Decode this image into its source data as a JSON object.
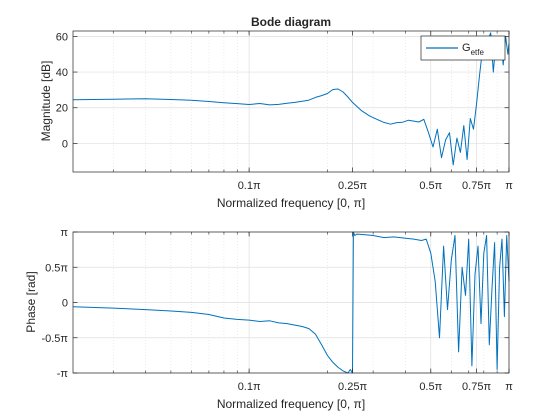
{
  "figure": {
    "background": "#ffffff",
    "axis_color": "#262626",
    "grid_color": "#dfdfdf",
    "line_color": "#0072bd"
  },
  "chart_data": [
    {
      "type": "line",
      "title": "Bode diagram",
      "xlabel": "Normalized frequency [0, π]",
      "ylabel": "Magnitude [dB]",
      "x_scale": "log",
      "x_unit": "fraction of π",
      "xlim": [
        0.021,
        1.0
      ],
      "ylim": [
        -16,
        63
      ],
      "grid": true,
      "legend": {
        "position": "top-right",
        "entries": [
          {
            "label": "G",
            "subscript": "etfe"
          }
        ]
      },
      "x_ticks": [
        {
          "value": 0.1,
          "label": "0.1π"
        },
        {
          "value": 0.25,
          "label": "0.25π"
        },
        {
          "value": 0.5,
          "label": "0.5π"
        },
        {
          "value": 0.75,
          "label": "0.75π"
        },
        {
          "value": 1.0,
          "label": "π"
        }
      ],
      "y_ticks": [
        {
          "value": 0,
          "label": "0"
        },
        {
          "value": 20,
          "label": "20"
        },
        {
          "value": 40,
          "label": "40"
        },
        {
          "value": 60,
          "label": "60"
        }
      ],
      "series": [
        {
          "name": "G_etfe",
          "x": [
            0.021,
            0.03,
            0.04,
            0.05,
            0.06,
            0.07,
            0.08,
            0.09,
            0.1,
            0.11,
            0.12,
            0.13,
            0.14,
            0.15,
            0.16,
            0.17,
            0.18,
            0.19,
            0.2,
            0.21,
            0.22,
            0.23,
            0.24,
            0.25,
            0.27,
            0.29,
            0.31,
            0.33,
            0.35,
            0.37,
            0.39,
            0.41,
            0.43,
            0.45,
            0.47,
            0.49,
            0.51,
            0.53,
            0.55,
            0.57,
            0.59,
            0.61,
            0.63,
            0.65,
            0.67,
            0.69,
            0.71,
            0.73,
            0.75,
            0.77,
            0.79,
            0.81,
            0.83,
            0.85,
            0.87,
            0.89,
            0.91,
            0.93,
            0.95,
            0.97,
            0.99,
            1.0
          ],
          "y": [
            24.5,
            24.8,
            25.0,
            24.6,
            24.2,
            23.5,
            22.8,
            22.3,
            21.8,
            22.4,
            21.6,
            21.9,
            22.5,
            23.0,
            23.6,
            24.3,
            25.8,
            26.8,
            28.0,
            30.2,
            30.5,
            28.8,
            26.0,
            23.0,
            18.5,
            15.5,
            13.5,
            11.8,
            10.8,
            11.7,
            11.9,
            13.0,
            12.5,
            12.0,
            13.5,
            6.0,
            -2.0,
            8.0,
            -8.0,
            2.0,
            6.0,
            -12.0,
            3.0,
            -5.0,
            10.0,
            -9.0,
            14.0,
            8.0,
            22.0,
            38.0,
            52.0,
            48.0,
            58.0,
            62.0,
            40.0,
            56.0,
            48.0,
            59.0,
            44.0,
            60.0,
            50.0,
            56.0
          ]
        }
      ]
    },
    {
      "type": "line",
      "title": "",
      "xlabel": "Normalized frequency [0, π]",
      "ylabel": "Phase [rad]",
      "x_scale": "log",
      "x_unit": "fraction of π",
      "y_unit": "fraction of π",
      "xlim": [
        0.021,
        1.0
      ],
      "ylim": [
        -1.0,
        1.0
      ],
      "grid": true,
      "x_ticks": [
        {
          "value": 0.1,
          "label": "0.1π"
        },
        {
          "value": 0.25,
          "label": "0.25π"
        },
        {
          "value": 0.5,
          "label": "0.5π"
        },
        {
          "value": 0.75,
          "label": "0.75π"
        },
        {
          "value": 1.0,
          "label": "π"
        }
      ],
      "y_ticks": [
        {
          "value": -1.0,
          "label": "-π"
        },
        {
          "value": -0.5,
          "label": "-0.5π"
        },
        {
          "value": 0,
          "label": "0"
        },
        {
          "value": 0.5,
          "label": "0.5π"
        },
        {
          "value": 1.0,
          "label": "π"
        }
      ],
      "series": [
        {
          "name": "G_etfe",
          "x": [
            0.021,
            0.03,
            0.04,
            0.05,
            0.06,
            0.07,
            0.08,
            0.09,
            0.1,
            0.11,
            0.12,
            0.13,
            0.14,
            0.15,
            0.16,
            0.17,
            0.18,
            0.19,
            0.2,
            0.21,
            0.22,
            0.23,
            0.24,
            0.245,
            0.25,
            0.252,
            0.255,
            0.26,
            0.28,
            0.3,
            0.33,
            0.36,
            0.4,
            0.43,
            0.46,
            0.48,
            0.5,
            0.52,
            0.54,
            0.56,
            0.58,
            0.6,
            0.62,
            0.64,
            0.66,
            0.68,
            0.7,
            0.72,
            0.74,
            0.76,
            0.78,
            0.8,
            0.82,
            0.84,
            0.86,
            0.88,
            0.9,
            0.92,
            0.94,
            0.96,
            0.98,
            1.0
          ],
          "y": [
            -0.06,
            -0.08,
            -0.1,
            -0.12,
            -0.14,
            -0.17,
            -0.22,
            -0.24,
            -0.25,
            -0.27,
            -0.26,
            -0.29,
            -0.3,
            -0.32,
            -0.34,
            -0.37,
            -0.45,
            -0.6,
            -0.75,
            -0.85,
            -0.92,
            -0.97,
            -1.0,
            -0.95,
            -1.0,
            1.0,
            0.95,
            0.97,
            0.96,
            0.95,
            0.92,
            0.93,
            0.91,
            0.9,
            0.88,
            0.9,
            0.7,
            0.3,
            -0.5,
            0.8,
            -0.1,
            0.6,
            0.95,
            -0.7,
            0.5,
            0.1,
            0.9,
            -0.9,
            0.4,
            0.8,
            -0.3,
            0.7,
            0.95,
            -0.6,
            0.2,
            0.85,
            -0.95,
            0.5,
            0.9,
            -0.2,
            0.95,
            0.3
          ]
        }
      ]
    }
  ]
}
